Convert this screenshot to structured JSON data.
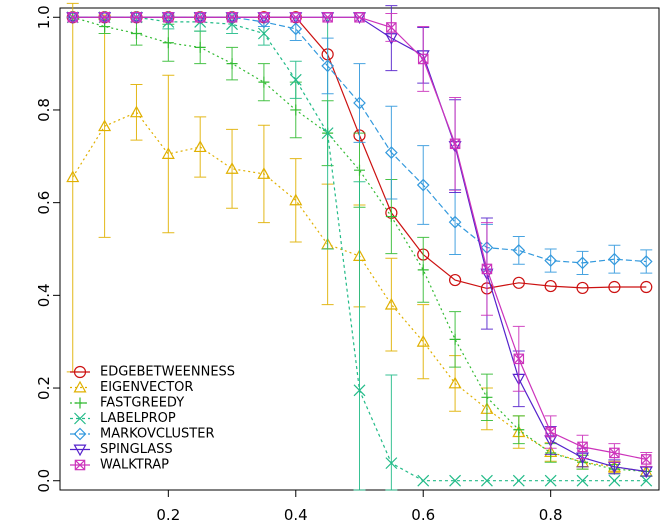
{
  "chart_data": {
    "type": "line",
    "title": "",
    "xlabel": "",
    "ylabel": "",
    "xlim": [
      0.03,
      0.97
    ],
    "ylim": [
      -0.02,
      1.02
    ],
    "x_ticks": [
      "0.2",
      "0.4",
      "0.6",
      "0.8"
    ],
    "x_tick_values": [
      0.2,
      0.4,
      0.6,
      0.8
    ],
    "y_ticks": [
      "0.0",
      "0.2",
      "0.4",
      "0.6",
      "0.8",
      "1.0"
    ],
    "y_tick_values": [
      0.0,
      0.2,
      0.4,
      0.6,
      0.8,
      1.0
    ],
    "grid": false,
    "legend_position": "bottom-left",
    "x": [
      0.05,
      0.1,
      0.15,
      0.2,
      0.25,
      0.3,
      0.35,
      0.4,
      0.45,
      0.5,
      0.55,
      0.6,
      0.65,
      0.7,
      0.75,
      0.8,
      0.85,
      0.9,
      0.95
    ],
    "series": [
      {
        "name": "EDGEBETWEENNESS",
        "color": "#cc1111",
        "marker": "circle",
        "dash": "",
        "values": [
          1.0,
          1.0,
          1.0,
          1.0,
          1.0,
          1.0,
          1.0,
          1.0,
          0.92,
          0.745,
          0.578,
          0.488,
          0.433,
          0.415,
          0.427,
          0.42,
          0.416,
          0.418,
          0.418
        ],
        "err": [
          0.0,
          0.0,
          0.0,
          0.0,
          0.0,
          0.0,
          0.0,
          0.0,
          0.0,
          0.0,
          0.0,
          0.0,
          0.0,
          0.0,
          0.0,
          0.0,
          0.0,
          0.0,
          0.0
        ]
      },
      {
        "name": "EIGENVECTOR",
        "color": "#e0b000",
        "marker": "triangle-up",
        "dash": "2,3",
        "values": [
          0.655,
          0.765,
          0.795,
          0.705,
          0.72,
          0.673,
          0.662,
          0.605,
          0.51,
          0.485,
          0.38,
          0.3,
          0.21,
          0.155,
          0.105,
          0.062,
          0.04,
          0.03,
          0.02
        ],
        "err": [
          0.42,
          0.24,
          0.06,
          0.17,
          0.065,
          0.085,
          0.105,
          0.09,
          0.13,
          0.11,
          0.1,
          0.08,
          0.06,
          0.045,
          0.035,
          0.02,
          0.015,
          0.012,
          0.01
        ]
      },
      {
        "name": "FASTGREEDY",
        "color": "#33bb33",
        "marker": "plus",
        "dash": "2,3",
        "values": [
          1.0,
          0.98,
          0.965,
          0.945,
          0.935,
          0.9,
          0.86,
          0.8,
          0.75,
          0.67,
          0.57,
          0.455,
          0.305,
          0.18,
          0.11,
          0.06,
          0.04,
          0.025,
          0.02
        ],
        "err": [
          0.0,
          0.015,
          0.025,
          0.04,
          0.035,
          0.035,
          0.04,
          0.06,
          0.07,
          0.08,
          0.08,
          0.07,
          0.06,
          0.05,
          0.03,
          0.02,
          0.015,
          0.01,
          0.01
        ]
      },
      {
        "name": "LABELPROP",
        "color": "#22bb88",
        "marker": "cross",
        "dash": "3,3",
        "values": [
          1.0,
          1.0,
          1.0,
          0.99,
          0.99,
          0.985,
          0.965,
          0.865,
          0.75,
          0.195,
          0.038,
          0.0,
          0.0,
          0.0,
          0.0,
          0.0,
          0.0,
          0.0,
          0.0
        ],
        "err": [
          0.0,
          0.0,
          0.01,
          0.015,
          0.02,
          0.02,
          0.025,
          0.04,
          0.25,
          0.45,
          0.19,
          0.0,
          0.0,
          0.0,
          0.0,
          0.0,
          0.0,
          0.0,
          0.0
        ]
      },
      {
        "name": "MARKOVCLUSTER",
        "color": "#3399dd",
        "marker": "diamond",
        "dash": "6,3",
        "values": [
          1.0,
          1.0,
          1.0,
          1.0,
          1.0,
          1.0,
          0.99,
          0.975,
          0.895,
          0.815,
          0.708,
          0.638,
          0.558,
          0.503,
          0.497,
          0.475,
          0.47,
          0.478,
          0.473
        ],
        "err": [
          0.0,
          0.0,
          0.0,
          0.0,
          0.0,
          0.0,
          0.01,
          0.025,
          0.06,
          0.085,
          0.1,
          0.085,
          0.07,
          0.05,
          0.03,
          0.025,
          0.025,
          0.03,
          0.025
        ]
      },
      {
        "name": "SPINGLASS",
        "color": "#5522cc",
        "marker": "triangle-down",
        "dash": "",
        "values": [
          1.0,
          1.0,
          1.0,
          1.0,
          1.0,
          1.0,
          1.0,
          1.0,
          1.0,
          1.0,
          0.955,
          0.918,
          0.722,
          0.447,
          0.22,
          0.087,
          0.05,
          0.03,
          0.02
        ],
        "err": [
          0.0,
          0.0,
          0.0,
          0.0,
          0.0,
          0.0,
          0.0,
          0.0,
          0.0,
          0.0,
          0.07,
          0.06,
          0.1,
          0.12,
          0.06,
          0.03,
          0.02,
          0.015,
          0.01
        ]
      },
      {
        "name": "WALKTRAP",
        "color": "#cc33bb",
        "marker": "square-x",
        "dash": "",
        "values": [
          1.0,
          1.0,
          1.0,
          1.0,
          1.0,
          1.0,
          1.0,
          1.0,
          1.0,
          1.0,
          0.978,
          0.91,
          0.727,
          0.457,
          0.263,
          0.105,
          0.073,
          0.06,
          0.046
        ],
        "err": [
          0.0,
          0.0,
          0.0,
          0.0,
          0.0,
          0.0,
          0.0,
          0.0,
          0.0,
          0.0,
          0.03,
          0.07,
          0.1,
          0.1,
          0.07,
          0.035,
          0.025,
          0.02,
          0.015
        ]
      }
    ]
  }
}
